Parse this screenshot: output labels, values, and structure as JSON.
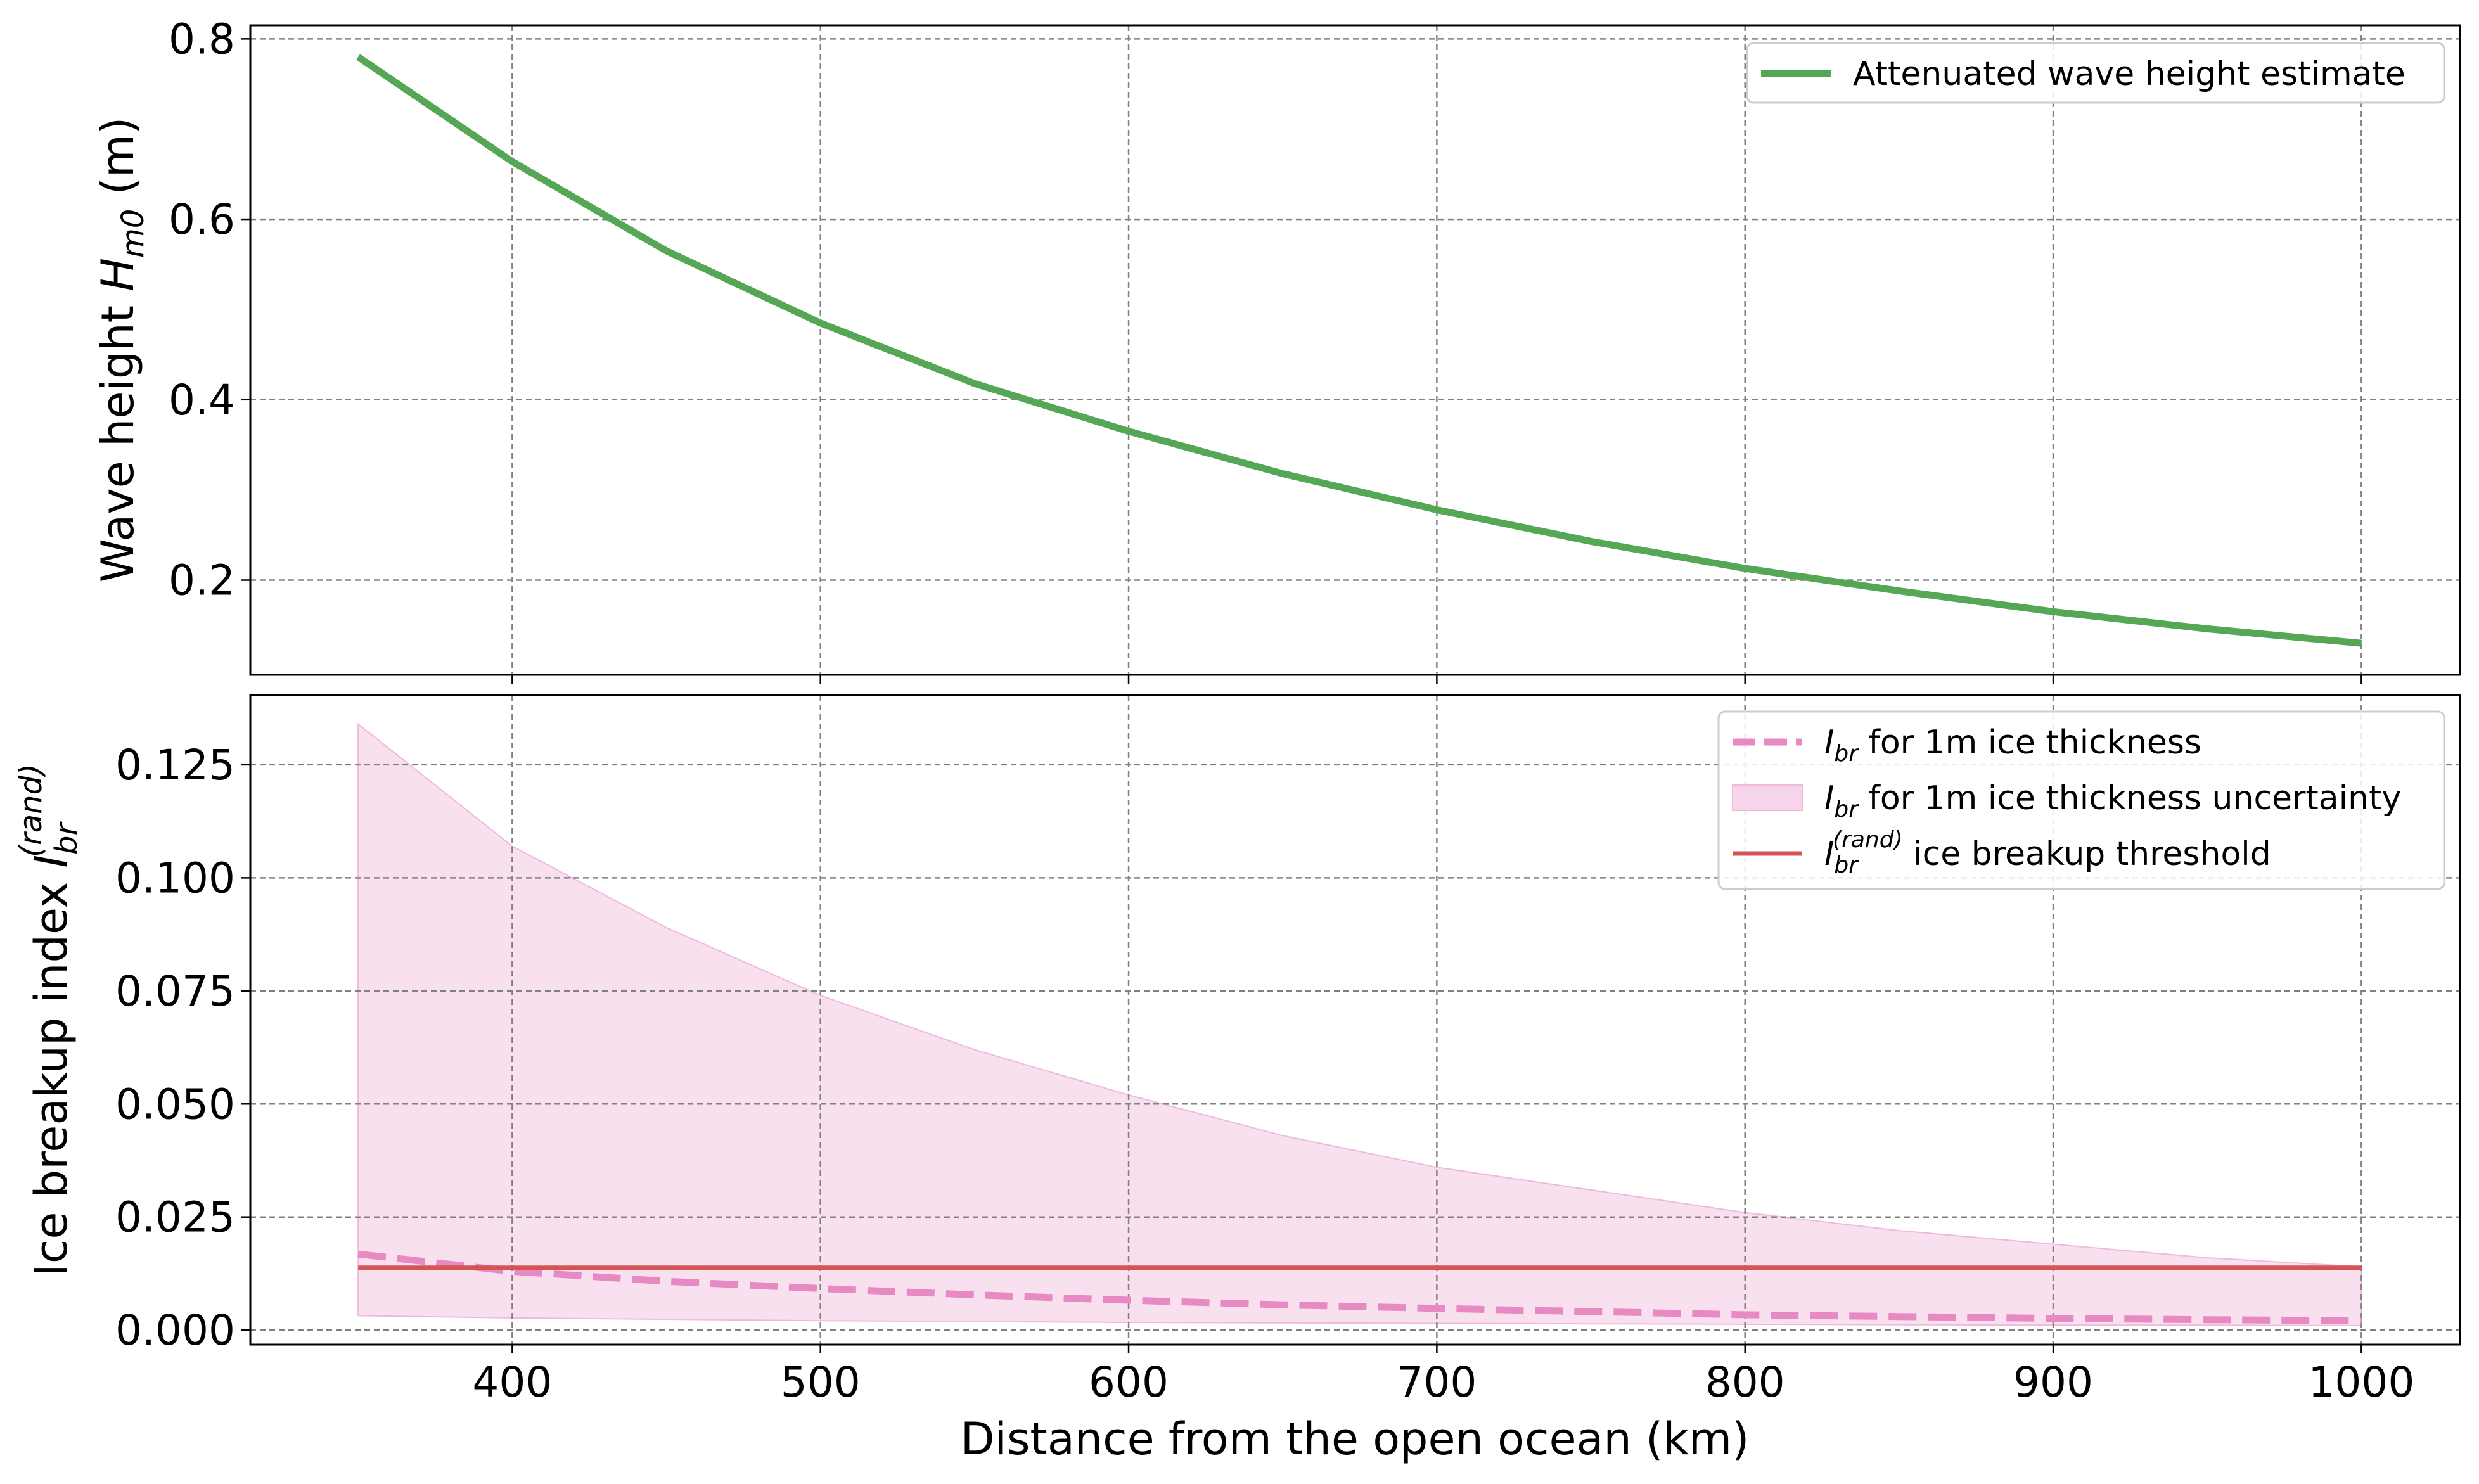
{
  "chart_data": [
    {
      "type": "line",
      "title": "",
      "xlabel": "",
      "ylabel": "Wave height H_m0 (m)",
      "ylabel_parts": {
        "main": "Wave height ",
        "symbol": "H",
        "sub": "m0",
        "unit": " (m)"
      },
      "xlim": [
        315,
        1032
      ],
      "ylim": [
        0.095,
        0.815
      ],
      "yticks": [
        0.2,
        0.4,
        0.6,
        0.8
      ],
      "ytick_labels": [
        "0.2",
        "0.4",
        "0.6",
        "0.8"
      ],
      "xticks": [
        400,
        500,
        600,
        700,
        800,
        900,
        1000
      ],
      "grid": true,
      "legend": "top-right",
      "series": [
        {
          "name": "Attenuated wave height estimate",
          "color": "#55a755",
          "style": "solid",
          "x": [
            350,
            400,
            450,
            500,
            550,
            600,
            650,
            700,
            750,
            800,
            850,
            900,
            950,
            1000
          ],
          "y": [
            0.78,
            0.664,
            0.565,
            0.485,
            0.418,
            0.365,
            0.318,
            0.278,
            0.243,
            0.213,
            0.188,
            0.165,
            0.146,
            0.13
          ]
        }
      ]
    },
    {
      "type": "line",
      "title": "",
      "xlabel": "Distance from the open ocean (km)",
      "ylabel": "Ice breakup index I_br^(rand)",
      "ylabel_parts": {
        "main": "Ice breakup index ",
        "symbol": "I",
        "sub": "br",
        "sup": "(rand)"
      },
      "xlim": [
        315,
        1032
      ],
      "ylim": [
        -0.0032,
        0.1404
      ],
      "yticks": [
        0.0,
        0.025,
        0.05,
        0.075,
        0.1,
        0.125
      ],
      "ytick_labels": [
        "0.000",
        "0.025",
        "0.050",
        "0.075",
        "0.100",
        "0.125"
      ],
      "xticks": [
        400,
        500,
        600,
        700,
        800,
        900,
        1000
      ],
      "xtick_labels": [
        "400",
        "500",
        "600",
        "700",
        "800",
        "900",
        "1000"
      ],
      "grid": true,
      "legend": "top-right",
      "series": [
        {
          "name": "I_br for 1m ice thickness",
          "legend_parts": {
            "symbol": "I",
            "sub": "br",
            "text": " for 1m ice thickness"
          },
          "color": "#e78ac3",
          "style": "dashed",
          "x": [
            350,
            400,
            450,
            500,
            550,
            600,
            650,
            700,
            750,
            800,
            850,
            900,
            950,
            1000
          ],
          "y": [
            0.0168,
            0.013,
            0.0108,
            0.0092,
            0.0078,
            0.0066,
            0.0056,
            0.0048,
            0.0041,
            0.0034,
            0.003,
            0.0026,
            0.0023,
            0.0021
          ]
        },
        {
          "name": "I_br for 1m ice thickness uncertainty",
          "legend_parts": {
            "symbol": "I",
            "sub": "br",
            "text": " for 1m ice thickness uncertainty"
          },
          "color": "#f6d5ea",
          "edge_color": "#f0b8dc",
          "style": "band",
          "x": [
            350,
            400,
            450,
            500,
            550,
            600,
            650,
            700,
            750,
            800,
            850,
            900,
            950,
            1000
          ],
          "upper": [
            0.134,
            0.107,
            0.089,
            0.074,
            0.062,
            0.052,
            0.043,
            0.036,
            0.031,
            0.026,
            0.022,
            0.019,
            0.016,
            0.014
          ],
          "lower": [
            0.0032,
            0.0027,
            0.0024,
            0.0021,
            0.0019,
            0.0017,
            0.0016,
            0.0015,
            0.0014,
            0.0013,
            0.0012,
            0.0011,
            0.0011,
            0.001
          ]
        },
        {
          "name": "I_br^(rand) ice breakup threshold",
          "legend_parts": {
            "symbol": "I",
            "sub": "br",
            "sup": "(rand)",
            "text": " ice breakup threshold"
          },
          "color": "#d45555",
          "style": "solid",
          "x": [
            350,
            1000
          ],
          "y": [
            0.0138,
            0.0138
          ]
        }
      ]
    }
  ]
}
